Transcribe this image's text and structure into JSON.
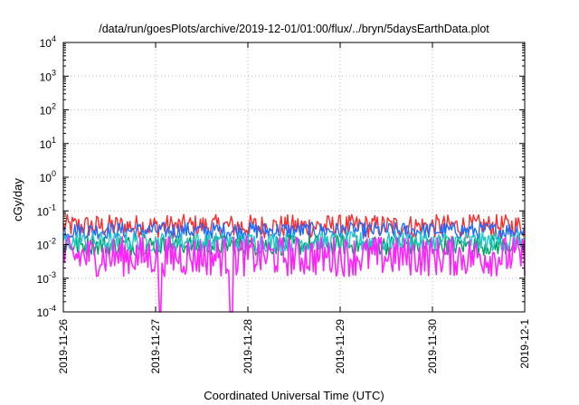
{
  "chart_data": {
    "type": "line",
    "title": "/data/run/goesPlots/archive/2019-12-01/01:00/flux/../bryn/5daysEarthData.plot",
    "xlabel": "Coordinated Universal Time (UTC)",
    "ylabel": "cGy/day",
    "yscale": "log",
    "ylim": [
      0.0001,
      10000
    ],
    "xlim": [
      "2019-11-26",
      "2019-12-1"
    ],
    "x_ticks": [
      "2019-11-26",
      "2019-11-27",
      "2019-11-28",
      "2019-11-29",
      "2019-11-30",
      "2019-12-1"
    ],
    "y_ticks": [
      {
        "base": "10",
        "exp": "-4"
      },
      {
        "base": "10",
        "exp": "-3"
      },
      {
        "base": "10",
        "exp": "-2"
      },
      {
        "base": "10",
        "exp": "-1"
      },
      {
        "base": "10",
        "exp": "0"
      },
      {
        "base": "10",
        "exp": "1"
      },
      {
        "base": "10",
        "exp": "2"
      },
      {
        "base": "10",
        "exp": "3"
      },
      {
        "base": "10",
        "exp": "4"
      }
    ],
    "grid": true,
    "series": [
      {
        "color": "#ff2a2a",
        "base": 0.035,
        "jitter": 0.35,
        "x": [
          0,
          0.5,
          1,
          1.5,
          2,
          2.5,
          3,
          3.5,
          4,
          4.5,
          5
        ]
      },
      {
        "color": "#1e6cff",
        "base": 0.026,
        "jitter": 0.25,
        "x": [
          0,
          0.5,
          1,
          1.5,
          2,
          2.5,
          3,
          3.5,
          4,
          4.5,
          5
        ]
      },
      {
        "color": "#00a060",
        "base": 0.0095,
        "jitter": 0.3,
        "x": [
          0,
          0.5,
          1,
          1.5,
          2,
          2.5,
          3,
          3.5,
          4,
          4.5,
          5
        ]
      },
      {
        "color": "#22c8c8",
        "base": 0.012,
        "jitter": 0.3,
        "x": [
          0,
          0.5,
          1,
          1.5,
          2,
          2.5,
          3,
          3.5,
          4,
          4.5,
          5
        ]
      },
      {
        "color": "#ff22ff",
        "base": 0.0045,
        "jitter": 0.6,
        "dropouts": [
          1.05,
          1.82
        ],
        "x": [
          0,
          0.5,
          1,
          1.5,
          2,
          2.5,
          3,
          3.5,
          4,
          4.5,
          5
        ]
      }
    ]
  }
}
